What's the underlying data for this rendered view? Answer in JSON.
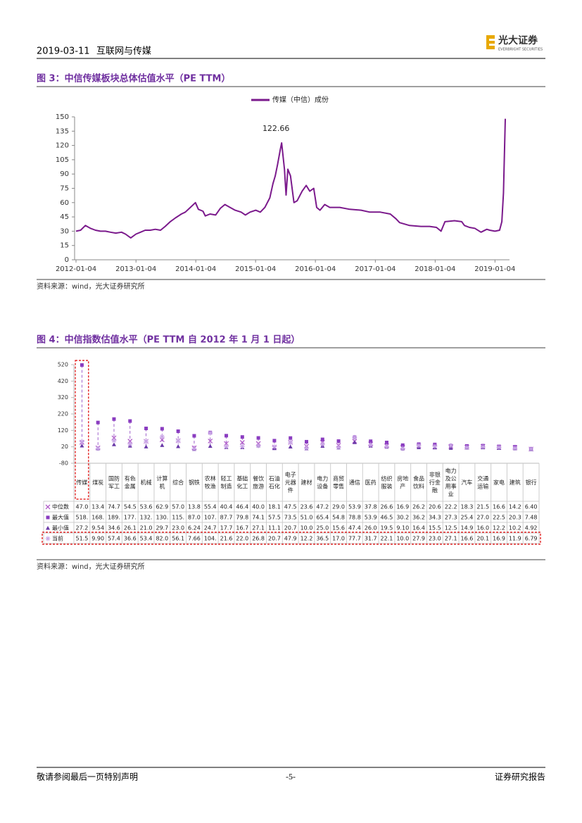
{
  "header": {
    "date": "2019-03-11",
    "section": "互联网与传媒",
    "logo": "光大证券",
    "logo_en": "EVERBRIGHT SECURITIES"
  },
  "footer": {
    "left": "敬请参阅最后一页特别声明",
    "page": "-5-",
    "right": "证券研究报告"
  },
  "chart_data": [
    {
      "type": "line",
      "title": "图 3：中信传媒板块总体估值水平（PE TTM）",
      "source": "资料来源：wind，光大证券研究所",
      "x": [
        "2012-01-04",
        "2012-02-01",
        "2012-03-01",
        "2012-04-01",
        "2012-05-02",
        "2012-06-01",
        "2012-07-02",
        "2012-08-01",
        "2012-09-03",
        "2012-10-08",
        "2012-11-01",
        "2012-12-03",
        "2013-01-04",
        "2013-02-01",
        "2013-03-01",
        "2013-04-01",
        "2013-05-02",
        "2013-06-03",
        "2013-07-01",
        "2013-08-01",
        "2013-09-02",
        "2013-10-08",
        "2013-11-01",
        "2013-12-02",
        "2014-01-02",
        "2014-01-20",
        "2014-02-17",
        "2014-03-03",
        "2014-04-01",
        "2014-05-05",
        "2014-06-03",
        "2014-07-01",
        "2014-08-01",
        "2014-09-01",
        "2014-10-08",
        "2014-11-03",
        "2014-12-01",
        "2015-01-05",
        "2015-02-02",
        "2015-03-02",
        "2015-04-01",
        "2015-04-20",
        "2015-05-04",
        "2015-05-18",
        "2015-06-03",
        "2015-06-12",
        "2015-06-29",
        "2015-07-09",
        "2015-07-20",
        "2015-08-05",
        "2015-08-26",
        "2015-09-15",
        "2015-10-15",
        "2015-11-09",
        "2015-12-01",
        "2015-12-25",
        "2016-01-12",
        "2016-02-01",
        "2016-03-01",
        "2016-04-01",
        "2016-06-01",
        "2016-08-01",
        "2016-10-10",
        "2016-12-01",
        "2017-02-03",
        "2017-04-05",
        "2017-05-10",
        "2017-06-01",
        "2017-08-01",
        "2017-10-09",
        "2017-12-01",
        "2018-01-12",
        "2018-02-09",
        "2018-03-05",
        "2018-05-02",
        "2018-06-15",
        "2018-07-02",
        "2018-08-01",
        "2018-09-03",
        "2018-10-11",
        "2018-11-15",
        "2018-12-03",
        "2019-01-04",
        "2019-02-01",
        "2019-02-15",
        "2019-02-25",
        "2019-03-08"
      ],
      "series": [
        {
          "name": "传媒（中信）成份",
          "color": "#7b1a8c",
          "values": [
            30,
            31,
            36,
            33,
            31,
            30,
            30,
            29,
            28,
            29,
            27,
            23,
            27,
            29,
            31,
            31,
            32,
            31,
            35,
            40,
            44,
            48,
            50,
            55,
            60,
            53,
            51,
            46,
            48,
            47,
            54,
            58,
            55,
            52,
            50,
            47,
            50,
            52,
            50,
            55,
            65,
            80,
            88,
            100,
            115,
            122.66,
            95,
            68,
            95,
            88,
            60,
            62,
            72,
            78,
            72,
            75,
            55,
            52,
            58,
            55,
            55,
            53,
            52,
            50,
            50,
            48,
            43,
            39,
            36,
            35,
            35,
            34,
            30,
            40,
            41,
            40,
            36,
            34,
            33,
            29,
            32,
            31,
            30,
            31,
            40,
            70,
            148
          ],
          "value_labels": [
            null,
            null,
            null,
            null,
            null,
            null,
            null,
            null,
            null,
            null,
            null,
            null,
            null,
            null,
            null,
            null,
            null,
            null,
            null,
            null,
            null,
            null,
            null,
            null,
            null,
            null,
            null,
            null,
            null,
            null,
            null,
            null,
            null,
            null,
            null,
            null,
            null,
            null,
            null,
            null,
            null,
            null,
            null,
            null,
            null,
            "122.66",
            null,
            null,
            null,
            null,
            null,
            null,
            null,
            null,
            null,
            null,
            null,
            null,
            null,
            null,
            null,
            null,
            null,
            null,
            null,
            null,
            null,
            null,
            null,
            null,
            null,
            null,
            null,
            null,
            null,
            null,
            null,
            null,
            null,
            null,
            null,
            null,
            null,
            null,
            null,
            null,
            null
          ]
        }
      ],
      "xlim": [
        "2012-01-04",
        "2019-03-08"
      ],
      "xticks": [
        "2012-01-04",
        "2013-01-04",
        "2014-01-04",
        "2015-01-04",
        "2016-01-04",
        "2017-01-04",
        "2018-01-04",
        "2019-01-04"
      ],
      "ylim": [
        0,
        150
      ],
      "yticks": [
        0,
        15,
        30,
        45,
        60,
        75,
        90,
        105,
        120,
        135,
        150
      ],
      "legend": "top"
    },
    {
      "type": "range",
      "title": "图 4：中信指数估值水平（PE TTM 自 2012 年 1 月 1 日起）",
      "source": "资料来源：wind，光大证券研究所",
      "categories": [
        "传媒",
        "煤炭",
        "国防军工",
        "有色金属",
        "机械",
        "计算机",
        "综合",
        "钢铁",
        "农林牧渔",
        "轻工制造",
        "基础化工",
        "餐饮旅游",
        "石油石化",
        "电子元器件",
        "建材",
        "电力设备",
        "商贸零售",
        "通信",
        "医药",
        "纺织服装",
        "房地产",
        "食品饮料",
        "非银行金融",
        "电力及公用事业",
        "汽车",
        "交通运输",
        "家电",
        "建筑",
        "银行"
      ],
      "series": [
        {
          "name": "中位数",
          "color": "#b05cc8",
          "marker": "x",
          "values": [
            47,
            13.4,
            74.7,
            54.5,
            53.6,
            62.9,
            57,
            13.8,
            55.4,
            40.4,
            46.4,
            40,
            18.1,
            47.5,
            23.6,
            47.2,
            29,
            53.9,
            37.8,
            26.6,
            16.9,
            26.2,
            20.6,
            22.2,
            18.3,
            21.5,
            16.6,
            14.2,
            6.4
          ],
          "value_labels": [
            "47.0",
            "13.4",
            "74.7",
            "54.5",
            "53.6",
            "62.9",
            "57.0",
            "13.8",
            "55.4",
            "40.4",
            "46.4",
            "40.0",
            "18.1",
            "47.5",
            "23.6",
            "47.2",
            "29.0",
            "53.9",
            "37.8",
            "26.6",
            "16.9",
            "26.2",
            "20.6",
            "22.2",
            "18.3",
            "21.5",
            "16.6",
            "14.2",
            "6.40"
          ]
        },
        {
          "name": "最大值",
          "color": "#8a3cc0",
          "marker": "square",
          "values": [
            518,
            168,
            189,
            177,
            132,
            130,
            115,
            87,
            107,
            87.7,
            79.8,
            74.1,
            57.5,
            73.5,
            51,
            65.4,
            54.8,
            78.8,
            53.9,
            46.5,
            30.2,
            36.2,
            34.3,
            27.3,
            25.4,
            27,
            22.5,
            20.3,
            7.48
          ],
          "value_labels": [
            "518.",
            "168.",
            "189.",
            "177.",
            "132.",
            "130.",
            "115.",
            "87.0",
            "107.",
            "87.7",
            "79.8",
            "74.1",
            "57.5",
            "73.5",
            "51.0",
            "65.4",
            "54.8",
            "78.8",
            "53.9",
            "46.5",
            "30.2",
            "36.2",
            "34.3",
            "27.3",
            "25.4",
            "27.0",
            "22.5",
            "20.3",
            "7.48"
          ]
        },
        {
          "name": "最小值",
          "color": "#6a3aa8",
          "marker": "triangle",
          "values": [
            27.2,
            9.54,
            34.6,
            26.1,
            21,
            29.7,
            23,
            6.24,
            24.7,
            17.7,
            16.7,
            27.1,
            11.1,
            20.7,
            10,
            25,
            15.6,
            47.4,
            26,
            19.5,
            9.1,
            16.4,
            15.5,
            12.5,
            14.9,
            16,
            12.2,
            10.2,
            4.92
          ],
          "value_labels": [
            "27.2",
            "9.54",
            "34.6",
            "26.1",
            "21.0",
            "29.7",
            "23.0",
            "6.24",
            "24.7",
            "17.7",
            "16.7",
            "27.1",
            "11.1",
            "20.7",
            "10.0",
            "25.0",
            "15.6",
            "47.4",
            "26.0",
            "19.5",
            "9.10",
            "16.4",
            "15.5",
            "12.5",
            "14.9",
            "16.0",
            "12.2",
            "10.2",
            "4.92"
          ]
        },
        {
          "name": "当前",
          "color": "#c9a6e6",
          "marker": "star",
          "values": [
            51.5,
            9.9,
            57.4,
            36.6,
            53.4,
            82,
            56.1,
            7.66,
            104,
            21.6,
            22,
            26.8,
            20.7,
            47.9,
            12.2,
            36.5,
            17,
            77.7,
            31.7,
            22.1,
            10,
            27.9,
            23,
            27.1,
            16.6,
            20.1,
            16.9,
            11.9,
            6.79
          ],
          "value_labels": [
            "51.5",
            "9.90",
            "57.4",
            "36.6",
            "53.4",
            "82.0",
            "56.1",
            "7.66",
            "104.",
            "21.6",
            "22.0",
            "26.8",
            "20.7",
            "47.9",
            "12.2",
            "36.5",
            "17.0",
            "77.7",
            "31.7",
            "22.1",
            "10.0",
            "27.9",
            "23.0",
            "27.1",
            "16.6",
            "20.1",
            "16.9",
            "11.9",
            "6.79"
          ]
        }
      ],
      "ylim": [
        -80,
        520
      ],
      "yticks": [
        -80,
        20,
        120,
        220,
        320,
        420,
        520
      ]
    }
  ]
}
